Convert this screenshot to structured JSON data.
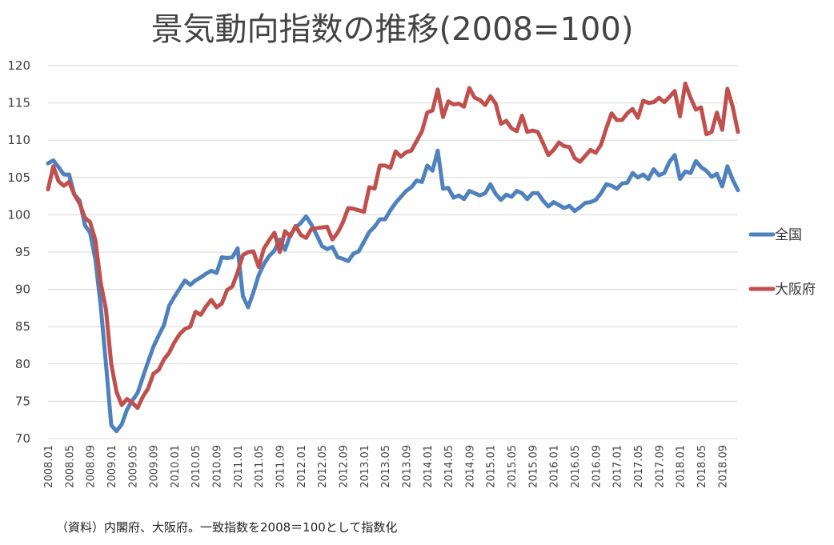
{
  "chart_data": {
    "type": "line",
    "title": "景気動向指数の推移(2008=100)",
    "xlabel": "",
    "ylabel": "",
    "ylim": [
      70,
      120
    ],
    "yticks": [
      70,
      75,
      80,
      85,
      90,
      95,
      100,
      105,
      110,
      115,
      120
    ],
    "grid": true,
    "legend_position": "right",
    "x_start": "2008.01",
    "x_ticks": [
      "2008.01",
      "2008.05",
      "2008.09",
      "2009.01",
      "2009.05",
      "2009.09",
      "2010.01",
      "2010.05",
      "2010.09",
      "2011.01",
      "2011.05",
      "2011.09",
      "2012.01",
      "2012.05",
      "2012.09",
      "2013.01",
      "2013.05",
      "2013.09",
      "2014.01",
      "2014.05",
      "2014.09",
      "2015.01",
      "2015.05",
      "2015.09",
      "2016.01",
      "2016.05",
      "2016.09",
      "2017.01",
      "2017.05",
      "2017.09",
      "2018.01",
      "2018.05",
      "2018.09"
    ],
    "series": [
      {
        "name": "全国",
        "color": "#4F81BD",
        "values": [
          106.9,
          107.3,
          106.4,
          105.4,
          105.4,
          102.7,
          101.9,
          98.6,
          97.6,
          94.0,
          87.8,
          80.0,
          71.8,
          71.0,
          71.9,
          73.9,
          75.1,
          76.1,
          78.2,
          80.3,
          82.3,
          83.8,
          85.2,
          87.8,
          89.0,
          90.1,
          91.2,
          90.6,
          91.2,
          91.6,
          92.1,
          92.5,
          92.2,
          94.3,
          94.2,
          94.3,
          95.5,
          89.1,
          87.6,
          89.6,
          91.9,
          93.4,
          94.5,
          95.2,
          96.7,
          95.3,
          97.3,
          98.3,
          98.9,
          99.8,
          98.7,
          97.3,
          95.8,
          95.4,
          95.7,
          94.3,
          94.1,
          93.8,
          94.8,
          95.1,
          96.4,
          97.7,
          98.4,
          99.4,
          99.4,
          100.6,
          101.6,
          102.4,
          103.2,
          103.7,
          104.6,
          104.4,
          106.6,
          105.9,
          108.6,
          103.5,
          103.6,
          102.3,
          102.6,
          102.1,
          103.2,
          102.9,
          102.6,
          102.9,
          104.1,
          102.8,
          102.0,
          102.7,
          102.4,
          103.2,
          102.9,
          102.1,
          102.9,
          102.9,
          101.9,
          101.1,
          101.7,
          101.3,
          100.9,
          101.2,
          100.5,
          101.0,
          101.6,
          101.7,
          102.0,
          102.9,
          104.1,
          103.9,
          103.5,
          104.2,
          104.3,
          105.6,
          105.0,
          105.4,
          104.8,
          106.1,
          105.3,
          105.6,
          107.1,
          108.0,
          104.8,
          105.8,
          105.6,
          107.2,
          106.4,
          105.9,
          105.1,
          105.5,
          103.8,
          106.5,
          104.7,
          103.3
        ]
      },
      {
        "name": "大阪府",
        "color": "#C0504D",
        "values": [
          103.4,
          106.5,
          104.5,
          103.9,
          104.4,
          102.7,
          101.5,
          99.6,
          99.0,
          96.6,
          90.9,
          87.3,
          80.0,
          76.3,
          74.5,
          75.3,
          74.8,
          74.1,
          75.6,
          76.7,
          78.7,
          79.2,
          80.6,
          81.5,
          82.9,
          84.0,
          84.7,
          85.0,
          87.0,
          86.6,
          87.7,
          88.6,
          87.6,
          88.1,
          89.9,
          90.4,
          92.3,
          94.6,
          95.0,
          95.1,
          93.0,
          95.5,
          96.6,
          97.6,
          95.0,
          97.8,
          97.1,
          98.5,
          97.3,
          96.9,
          98.1,
          98.2,
          98.3,
          98.4,
          96.7,
          97.6,
          99.0,
          100.9,
          100.8,
          100.6,
          100.4,
          103.7,
          103.5,
          106.6,
          106.6,
          106.3,
          108.5,
          107.8,
          108.4,
          108.6,
          109.9,
          111.2,
          113.7,
          114.0,
          116.8,
          113.1,
          115.2,
          114.8,
          114.9,
          114.5,
          117.0,
          115.7,
          115.4,
          114.7,
          115.9,
          114.9,
          112.2,
          112.6,
          111.6,
          111.2,
          113.3,
          111.1,
          111.3,
          111.1,
          109.6,
          108.0,
          108.7,
          109.7,
          109.2,
          109.1,
          107.6,
          107.1,
          107.9,
          108.7,
          108.3,
          109.4,
          111.6,
          113.6,
          112.7,
          112.7,
          113.6,
          114.2,
          113.0,
          115.3,
          115.0,
          115.1,
          115.7,
          115.1,
          115.8,
          116.6,
          113.2,
          117.6,
          115.7,
          114.1,
          114.4,
          110.8,
          111.1,
          113.7,
          111.4,
          116.9,
          114.5,
          111.1
        ]
      }
    ]
  },
  "source_note": "（資料）内閣府、大阪府。一致指数を2008＝100として指数化"
}
